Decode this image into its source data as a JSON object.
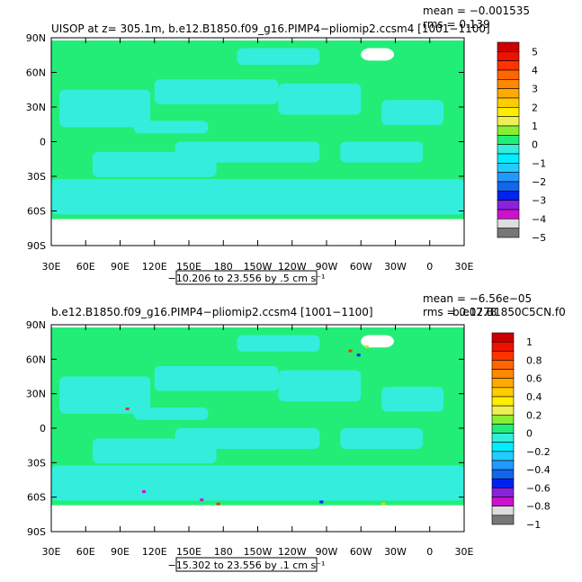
{
  "colors": {
    "ocean_main": "#22ee77",
    "ocean_alt": "#33eedd",
    "land": "#ffffff",
    "axis": "#000000"
  },
  "chart_data": [
    {
      "type": "heatmap",
      "title": "UISOP at z= 305.1m, b.e12.B1850.f09_g16.PIMP4−pliomip2.ccsm4 [1001−1100]",
      "stats": {
        "mean": "mean = −0.001535",
        "rms": "rms = 0.139"
      },
      "range_label": "−10.206 to 23.556 by .5 cm s⁻¹",
      "x_ticks": [
        "30E",
        "60E",
        "90E",
        "120E",
        "150E",
        "180",
        "150W",
        "120W",
        "90W",
        "60W",
        "30W",
        "0",
        "30E"
      ],
      "y_ticks": [
        "90N",
        "60N",
        "30N",
        "0",
        "30S",
        "60S",
        "90S"
      ],
      "colorbar": {
        "labels": [
          "5",
          "4",
          "3",
          "2",
          "1",
          "0",
          "−1",
          "−2",
          "−3",
          "−4",
          "−5"
        ],
        "colors": [
          "#cc0000",
          "#ee1100",
          "#ff3300",
          "#ff6600",
          "#ff8800",
          "#ffaa00",
          "#ffcc00",
          "#ffee00",
          "#eeee55",
          "#88ee33",
          "#22ee77",
          "#33eedd",
          "#00eeff",
          "#22ccff",
          "#2299ff",
          "#1166ee",
          "#0022ee",
          "#8822dd",
          "#cc11cc",
          "#dddddd",
          "#777777"
        ]
      }
    },
    {
      "type": "heatmap",
      "title": "b.e12.B1850.f09_g16.PIMP4−pliomip2.ccsm4 [1001−1100]",
      "subtitle": "b.e12.B1850C5CN.f0",
      "stats": {
        "mean": "mean = −6.56e−05",
        "rms": "rms = 0.0778"
      },
      "range_label": "−15.302 to 23.556 by .1 cm s⁻¹",
      "x_ticks": [
        "30E",
        "60E",
        "90E",
        "120E",
        "150E",
        "180",
        "150W",
        "120W",
        "90W",
        "60W",
        "30W",
        "0",
        "30E"
      ],
      "y_ticks": [
        "90N",
        "60N",
        "30N",
        "0",
        "30S",
        "60S",
        "90S"
      ],
      "colorbar": {
        "labels": [
          "1",
          "0.8",
          "0.6",
          "0.4",
          "0.2",
          "0",
          "−0.2",
          "−0.4",
          "−0.6",
          "−0.8",
          "−1"
        ],
        "colors": [
          "#cc0000",
          "#ee1100",
          "#ff3300",
          "#ff6600",
          "#ff8800",
          "#ffaa00",
          "#ffcc00",
          "#ffee00",
          "#eeee55",
          "#88ee33",
          "#22ee77",
          "#33eedd",
          "#00eeff",
          "#22ccff",
          "#2299ff",
          "#1166ee",
          "#0022ee",
          "#8822dd",
          "#cc11cc",
          "#dddddd",
          "#777777"
        ]
      }
    }
  ]
}
